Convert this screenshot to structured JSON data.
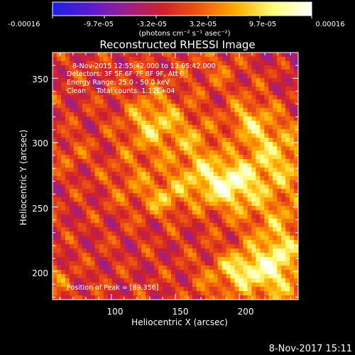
{
  "colorbar": {
    "tick_labels": [
      "-0.00016",
      "-9.7e-05",
      "-3.2e-05",
      "3.2e-05",
      "9.7e-05",
      "0.00016"
    ],
    "min": -0.00016,
    "max": 0.00016,
    "unit_label": "(photons cm⁻² s⁻¹ asec⁻²)",
    "colors": [
      "#1c20e8",
      "#5a1ad0",
      "#9b1f8c",
      "#d0202a",
      "#f05a10",
      "#ffb000",
      "#ffff80",
      "#ffffff"
    ]
  },
  "plot": {
    "title": "Reconstructed RHESSI Image",
    "xlabel": "Heliocentric X (arcsec)",
    "ylabel": "Heliocentric Y (arcsec)",
    "x_ticks": [
      "100",
      "150",
      "200"
    ],
    "y_ticks": [
      "200",
      "250",
      "300",
      "350"
    ],
    "x_range": [
      54,
      246
    ],
    "y_range": [
      178,
      370
    ],
    "info_lines": [
      "8-Nov-2015 12:55:42.000 to 13:05:42.000",
      "Detectors: 3F 5F 6F 7F 8F 9F, Att 0",
      "Energy Range: 25.0 - 50.0 keV",
      "Clean     Total counts: 1.12E+04"
    ],
    "peak_label": "Position of Peak = [89,356]"
  },
  "footer": {
    "timestamp": "8-Nov-2017 15:11"
  }
}
